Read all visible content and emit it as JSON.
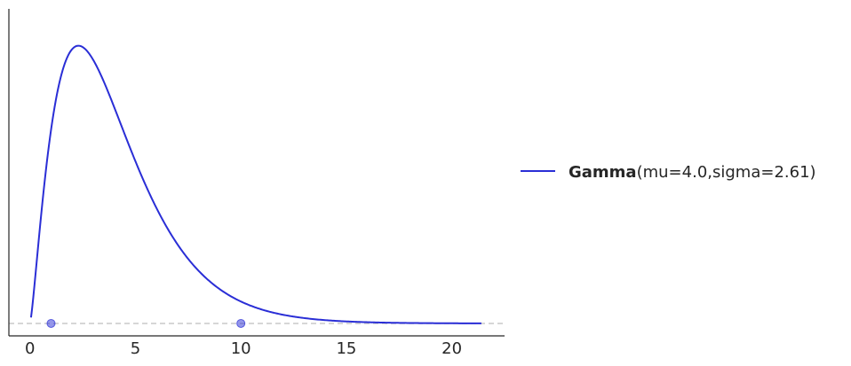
{
  "chart_data": {
    "type": "line",
    "title": "",
    "xlabel": "",
    "ylabel": "",
    "xlim": [
      -1,
      22.5
    ],
    "ylim": [
      -0.0085,
      0.215
    ],
    "xticks": [
      0,
      5,
      10,
      15,
      20
    ],
    "xtick_labels": [
      "0",
      "5",
      "10",
      "15",
      "20"
    ],
    "yticks_visible": false,
    "grid": false,
    "legend_placement": "right",
    "series": [
      {
        "name_bold": "Gamma",
        "name_params": "(mu=4.0,sigma=2.61)",
        "distribution": "gamma",
        "mu": 4.0,
        "sigma": 2.61,
        "x_range": [
          0.05,
          21.4
        ],
        "color": "#2a2ed6"
      }
    ],
    "baseline": {
      "y": 0,
      "style": "dashed",
      "color": "#c8c8c8"
    },
    "markers": [
      {
        "x": 1.0,
        "y": 0,
        "color": "#2a2ed6",
        "alpha": 0.5
      },
      {
        "x": 10.0,
        "y": 0,
        "color": "#2a2ed6",
        "alpha": 0.5
      }
    ]
  }
}
